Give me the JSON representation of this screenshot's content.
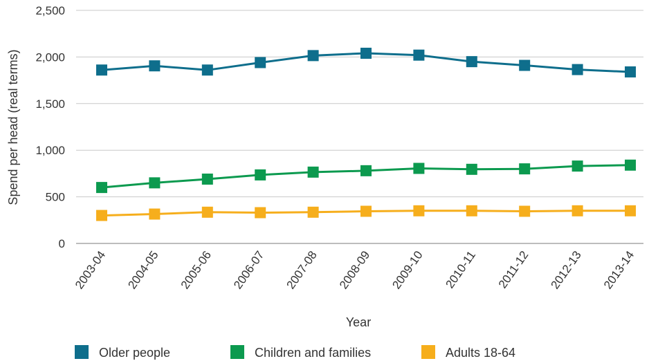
{
  "chart_data": {
    "type": "line",
    "title": "",
    "xlabel": "Year",
    "ylabel": "Spend per head (real terms)",
    "categories": [
      "2003-04",
      "2004-05",
      "2005-06",
      "2006-07",
      "2007-08",
      "2008-09",
      "2009-10",
      "2010-11",
      "2011-12",
      "2012-13",
      "2013-14"
    ],
    "ylim": [
      0,
      2500
    ],
    "yticks": [
      0,
      500,
      1000,
      1500,
      2000,
      2500
    ],
    "ytick_labels": [
      "0",
      "500",
      "1,000",
      "1,500",
      "2,000",
      "2,500"
    ],
    "grid": true,
    "legend_position": "bottom",
    "series": [
      {
        "name": "Older people",
        "color": "#0e6e8c",
        "values": [
          1860,
          1905,
          1860,
          1940,
          2015,
          2040,
          2020,
          1950,
          1910,
          1865,
          1840
        ]
      },
      {
        "name": "Children and families",
        "color": "#0c9a4f",
        "values": [
          600,
          650,
          690,
          735,
          765,
          780,
          805,
          795,
          800,
          830,
          840
        ]
      },
      {
        "name": "Adults 18-64",
        "color": "#f6ae1c",
        "values": [
          300,
          315,
          335,
          330,
          335,
          345,
          350,
          350,
          345,
          350,
          350
        ]
      }
    ]
  }
}
